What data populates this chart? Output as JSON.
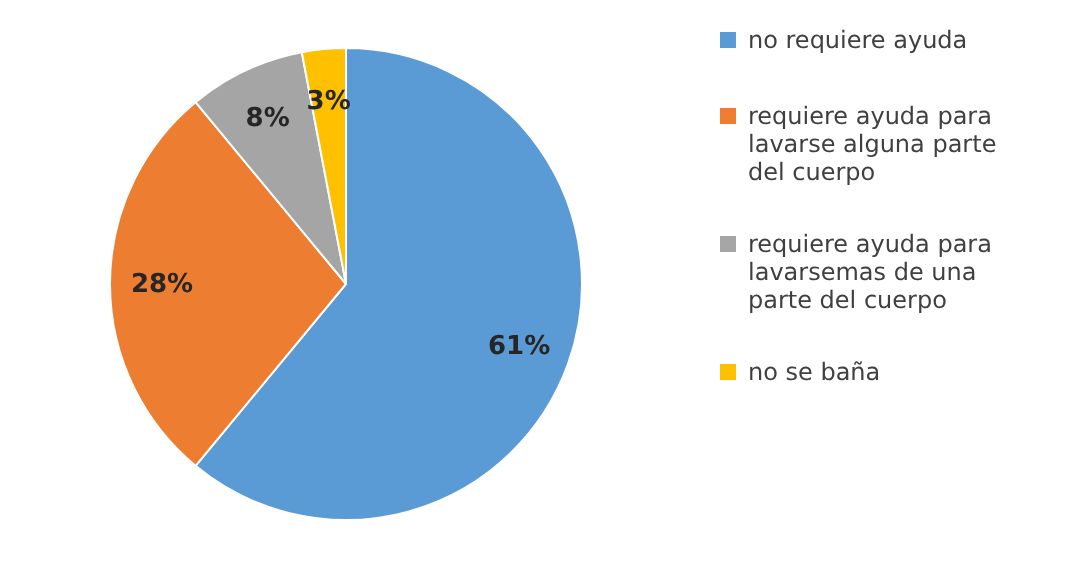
{
  "chart_data": {
    "type": "pie",
    "categories": [
      "no requiere ayuda",
      "requiere ayuda para lavarse alguna parte del cuerpo",
      "requiere ayuda  para lavarsemas de una parte del cuerpo",
      "no se baña"
    ],
    "values": [
      61,
      28,
      8,
      3
    ],
    "value_labels": [
      "61%",
      "28%",
      "8%",
      "3%"
    ],
    "colors": [
      "#5b9bd5",
      "#ed7d31",
      "#a5a5a5",
      "#ffc000"
    ],
    "legend": "right"
  }
}
